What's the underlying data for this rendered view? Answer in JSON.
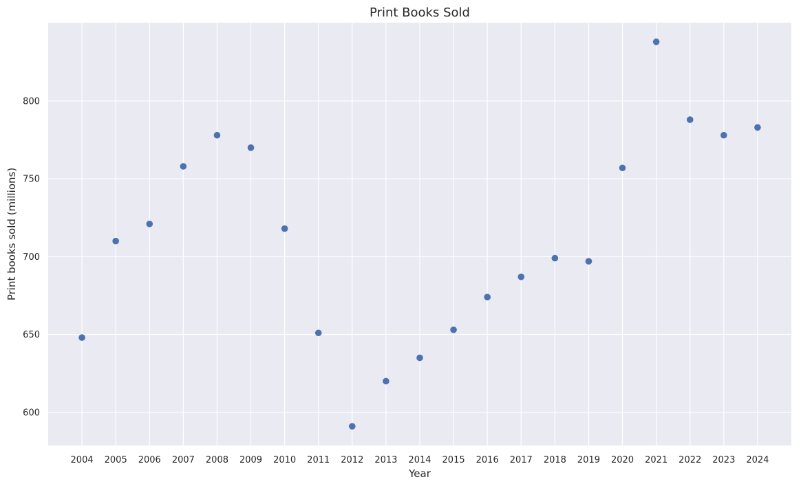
{
  "chart_data": {
    "type": "scatter",
    "title": "Print Books Sold",
    "xlabel": "Year",
    "ylabel": "Print books sold (millions)",
    "x": [
      2004,
      2005,
      2006,
      2007,
      2008,
      2009,
      2010,
      2011,
      2012,
      2013,
      2014,
      2015,
      2016,
      2017,
      2018,
      2019,
      2020,
      2021,
      2022,
      2023,
      2024
    ],
    "y": [
      648,
      710,
      721,
      758,
      778,
      770,
      718,
      651,
      591,
      620,
      635,
      653,
      674,
      687,
      699,
      697,
      757,
      838,
      788,
      778,
      783
    ],
    "xticks": [
      "2004",
      "2005",
      "2006",
      "2007",
      "2008",
      "2009",
      "2010",
      "2011",
      "2012",
      "2013",
      "2014",
      "2015",
      "2016",
      "2017",
      "2018",
      "2019",
      "2020",
      "2021",
      "2022",
      "2023",
      "2024"
    ],
    "yticks": [
      600,
      650,
      700,
      750,
      800
    ],
    "xlim": [
      2003,
      2025
    ],
    "ylim": [
      578.7,
      850.3
    ],
    "grid": true,
    "colors": {
      "background": "#eaeaf2",
      "grid": "#ffffff",
      "marker": "#4c72b0"
    }
  }
}
